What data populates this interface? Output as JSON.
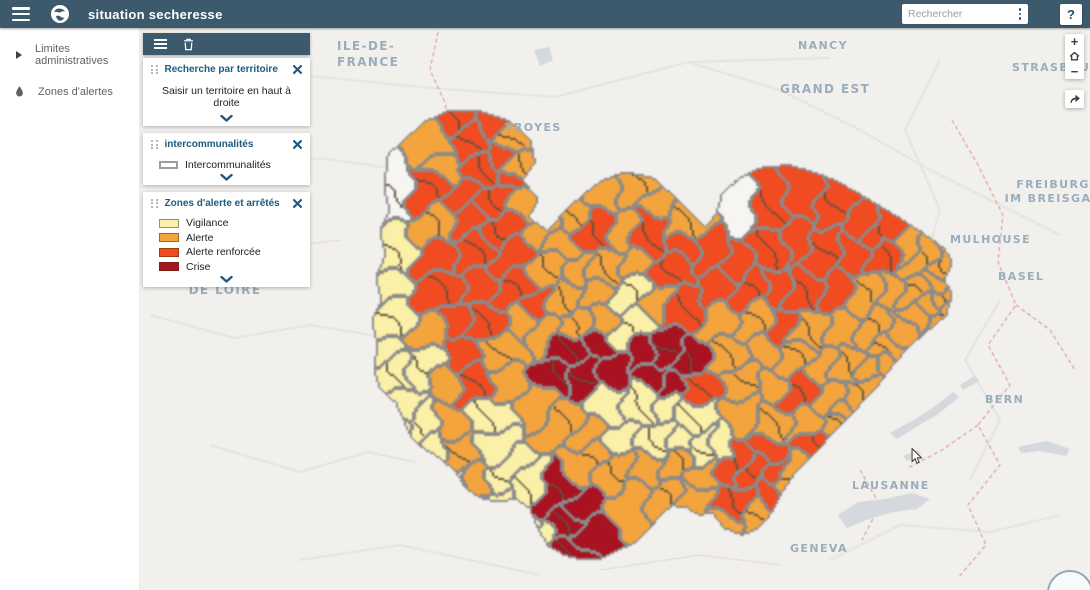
{
  "theme": {
    "header_bg": "#3d5a6d",
    "accent": "#1d5b7e",
    "map_bg": "#f1f0ed",
    "zone_border": "#8b8b8b",
    "map_label": "#9badbb"
  },
  "header": {
    "title": "situation secheresse",
    "search": {
      "placeholder": "Rechercher"
    },
    "help_label": "?"
  },
  "sidebar": {
    "items": [
      {
        "icon": "chevron-right",
        "label": "Limites administratives"
      },
      {
        "icon": "droplet",
        "label": "Zones d'alertes"
      }
    ]
  },
  "panel_stack": {
    "toolbar": {
      "icons": [
        "list",
        "trash"
      ]
    },
    "cards": [
      {
        "title": "Recherche par territoire",
        "body": "Saisir un territoire en haut à droite"
      },
      {
        "title": "intercommunalités",
        "legend": [
          {
            "label": "Intercommunalités",
            "swatch": "outline"
          }
        ]
      },
      {
        "title": "Zones d'alerte et arrêtés",
        "legend": [
          {
            "label": "Vigilance",
            "color": "#fbf0a7"
          },
          {
            "label": "Alerte",
            "color": "#f4a43d"
          },
          {
            "label": "Alerte renforcée",
            "color": "#f14b21"
          },
          {
            "label": "Crise",
            "color": "#a91220"
          }
        ]
      }
    ]
  },
  "map": {
    "labels": [
      {
        "id": "ile-de-france",
        "text": "ILE-DE-\nFRANCE"
      },
      {
        "id": "troyes",
        "text": "TROYES"
      },
      {
        "id": "nancy",
        "text": "NANCY"
      },
      {
        "id": "strasbourg",
        "text": "STRASBOURG"
      },
      {
        "id": "grand-est",
        "text": "GRAND EST"
      },
      {
        "id": "freiburg-im-breisgau",
        "text": "FREIBURG\nIM BREISGAU"
      },
      {
        "id": "mulhouse",
        "text": "MULHOUSE"
      },
      {
        "id": "basel",
        "text": "BASEL"
      },
      {
        "id": "centre-val-de-loire",
        "text": "CENTRE-VAL\nDE LOIRE"
      },
      {
        "id": "bern",
        "text": "BERN"
      },
      {
        "id": "lausanne",
        "text": "LAUSANNE"
      },
      {
        "id": "geneva",
        "text": "GENEVA"
      }
    ],
    "controls": {
      "zoom_in": "+",
      "zoom_out": "−"
    }
  }
}
